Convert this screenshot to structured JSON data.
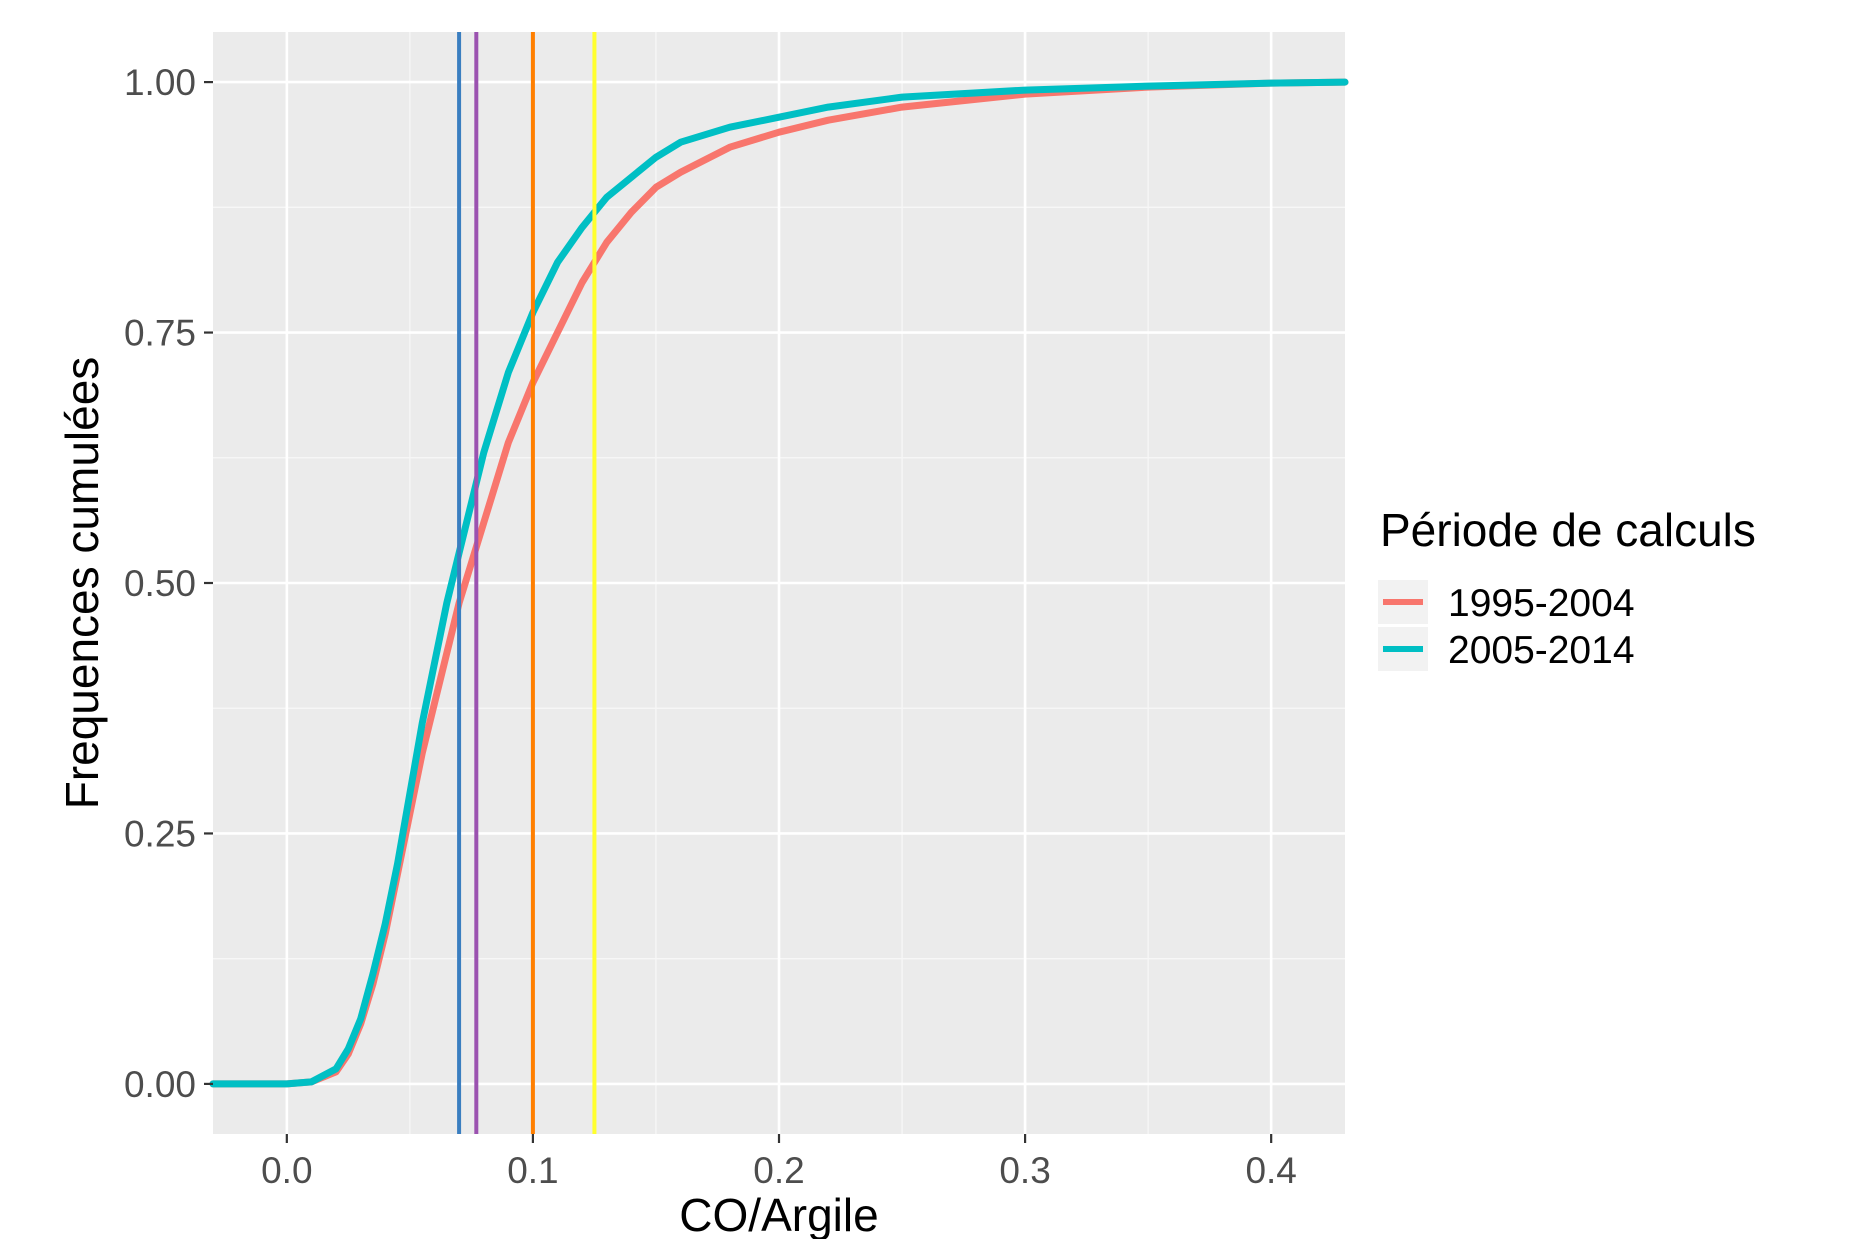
{
  "chart_data": {
    "type": "line",
    "xlabel": "CO/Argile",
    "ylabel": "Frequences cumulées",
    "xlim": [
      -0.03,
      0.43
    ],
    "ylim": [
      -0.05,
      1.05
    ],
    "x_ticks": [
      0.0,
      0.1,
      0.2,
      0.3,
      0.4
    ],
    "x_tick_labels": [
      "0.0",
      "0.1",
      "0.2",
      "0.3",
      "0.4"
    ],
    "y_ticks": [
      0.0,
      0.25,
      0.5,
      0.75,
      1.0
    ],
    "y_tick_labels": [
      "0.00",
      "0.25",
      "0.50",
      "0.75",
      "1.00"
    ],
    "grid": true,
    "legend": {
      "title": "Période de calculs",
      "position": "right"
    },
    "series": [
      {
        "name": "1995-2004",
        "color": "#F8766D",
        "x": [
          -0.03,
          0.0,
          0.01,
          0.02,
          0.025,
          0.03,
          0.035,
          0.04,
          0.045,
          0.05,
          0.055,
          0.06,
          0.065,
          0.07,
          0.075,
          0.08,
          0.085,
          0.09,
          0.095,
          0.1,
          0.11,
          0.12,
          0.125,
          0.13,
          0.14,
          0.15,
          0.16,
          0.18,
          0.2,
          0.22,
          0.25,
          0.3,
          0.35,
          0.4,
          0.43
        ],
        "y": [
          0.0,
          0.0,
          0.002,
          0.012,
          0.03,
          0.06,
          0.1,
          0.15,
          0.21,
          0.27,
          0.33,
          0.38,
          0.43,
          0.48,
          0.52,
          0.56,
          0.6,
          0.64,
          0.67,
          0.7,
          0.75,
          0.8,
          0.82,
          0.84,
          0.87,
          0.895,
          0.91,
          0.935,
          0.95,
          0.962,
          0.975,
          0.988,
          0.995,
          0.999,
          1.0
        ]
      },
      {
        "name": "2005-2014",
        "color": "#00BFC4",
        "x": [
          -0.03,
          0.0,
          0.01,
          0.02,
          0.025,
          0.03,
          0.035,
          0.04,
          0.045,
          0.05,
          0.055,
          0.06,
          0.065,
          0.07,
          0.075,
          0.08,
          0.085,
          0.09,
          0.095,
          0.1,
          0.11,
          0.12,
          0.125,
          0.13,
          0.14,
          0.15,
          0.16,
          0.18,
          0.2,
          0.22,
          0.25,
          0.3,
          0.35,
          0.4,
          0.43
        ],
        "y": [
          0.0,
          0.0,
          0.002,
          0.015,
          0.035,
          0.065,
          0.11,
          0.16,
          0.22,
          0.29,
          0.36,
          0.42,
          0.48,
          0.53,
          0.58,
          0.63,
          0.67,
          0.71,
          0.74,
          0.77,
          0.82,
          0.855,
          0.87,
          0.885,
          0.905,
          0.925,
          0.94,
          0.955,
          0.965,
          0.975,
          0.985,
          0.992,
          0.996,
          0.999,
          1.0
        ]
      }
    ],
    "vlines": [
      {
        "x": 0.07,
        "color": "#3A7EC0"
      },
      {
        "x": 0.077,
        "color": "#9B52B0"
      },
      {
        "x": 0.1,
        "color": "#FF7F00"
      },
      {
        "x": 0.125,
        "color": "#FFFF2E"
      }
    ]
  }
}
